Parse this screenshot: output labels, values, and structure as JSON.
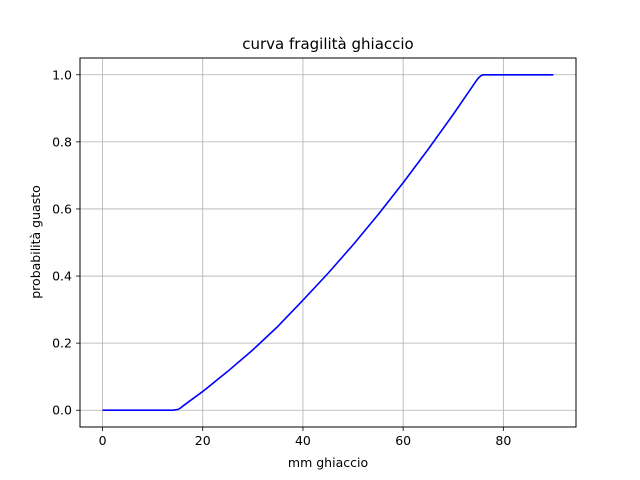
{
  "chart_data": {
    "type": "line",
    "title": "curva fragilità ghiaccio",
    "xlabel": "mm ghiaccio",
    "ylabel": "probabilità guasto",
    "xlim": [
      -4.5,
      94.5
    ],
    "ylim": [
      -0.05,
      1.05
    ],
    "xticks": [
      0,
      20,
      40,
      60,
      80
    ],
    "yticks": [
      0.0,
      0.2,
      0.4,
      0.6,
      0.8,
      1.0
    ],
    "xtick_labels": [
      "0",
      "20",
      "40",
      "60",
      "80"
    ],
    "ytick_labels": [
      "0.0",
      "0.2",
      "0.4",
      "0.6",
      "0.8",
      "1.0"
    ],
    "grid": true,
    "series": [
      {
        "color": "#0000ff",
        "x": [
          0,
          5,
          10,
          14,
          15,
          15.5,
          16,
          20,
          25,
          30,
          35,
          40,
          45,
          50,
          55,
          60,
          65,
          70,
          74,
          74.5,
          75,
          75.5,
          76,
          80,
          85,
          90
        ],
        "y": [
          0,
          0,
          0,
          0,
          0.002,
          0.006,
          0.012,
          0.056,
          0.116,
          0.18,
          0.25,
          0.328,
          0.408,
          0.493,
          0.583,
          0.678,
          0.778,
          0.882,
          0.969,
          0.98,
          0.99,
          0.997,
          1.0,
          1.0,
          1.0,
          1.0
        ]
      }
    ]
  }
}
